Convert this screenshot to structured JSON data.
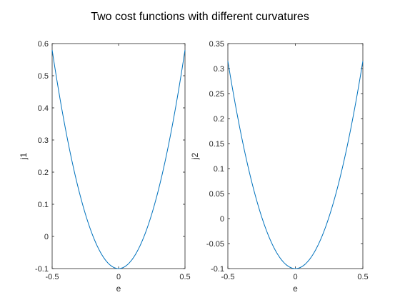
{
  "figure_title": "Two cost functions with different curvatures",
  "colors": {
    "line": "#0072BD",
    "axes": "#262626",
    "background": "#ffffff"
  },
  "chart_data": [
    {
      "type": "line",
      "title": "",
      "xlabel": "e",
      "ylabel": "j1",
      "xlim": [
        -0.5,
        0.5
      ],
      "ylim": [
        -0.1,
        0.6
      ],
      "grid": false,
      "x_ticks": [
        -0.5,
        0,
        0.5
      ],
      "x_tick_labels": [
        "-0.5",
        "0",
        "0.5"
      ],
      "y_ticks": [
        -0.1,
        0,
        0.1,
        0.2,
        0.3,
        0.4,
        0.5,
        0.6
      ],
      "y_tick_labels": [
        "-0.1",
        "0",
        "0.1",
        "0.2",
        "0.3",
        "0.4",
        "0.5",
        "0.6"
      ],
      "series": [
        {
          "curve": "parabola",
          "vertex_x": 0,
          "vertex_y": -0.1,
          "coef": 2.72,
          "x_range": [
            -0.5,
            0.5
          ],
          "points": 101
        }
      ]
    },
    {
      "type": "line",
      "title": "",
      "xlabel": "e",
      "ylabel": "j2",
      "xlim": [
        -0.5,
        0.5
      ],
      "ylim": [
        -0.1,
        0.35
      ],
      "grid": false,
      "x_ticks": [
        -0.5,
        0,
        0.5
      ],
      "x_tick_labels": [
        "-0.5",
        "0",
        "0.5"
      ],
      "y_ticks": [
        -0.1,
        -0.05,
        0,
        0.05,
        0.1,
        0.15,
        0.2,
        0.25,
        0.3,
        0.35
      ],
      "y_tick_labels": [
        "-0.1",
        "-0.05",
        "0",
        "0.05",
        "0.1",
        "0.15",
        "0.2",
        "0.25",
        "0.3",
        "0.35"
      ],
      "series": [
        {
          "curve": "parabola",
          "vertex_x": 0,
          "vertex_y": -0.1,
          "coef": 1.66,
          "x_range": [
            -0.5,
            0.5
          ],
          "points": 101
        }
      ]
    }
  ]
}
